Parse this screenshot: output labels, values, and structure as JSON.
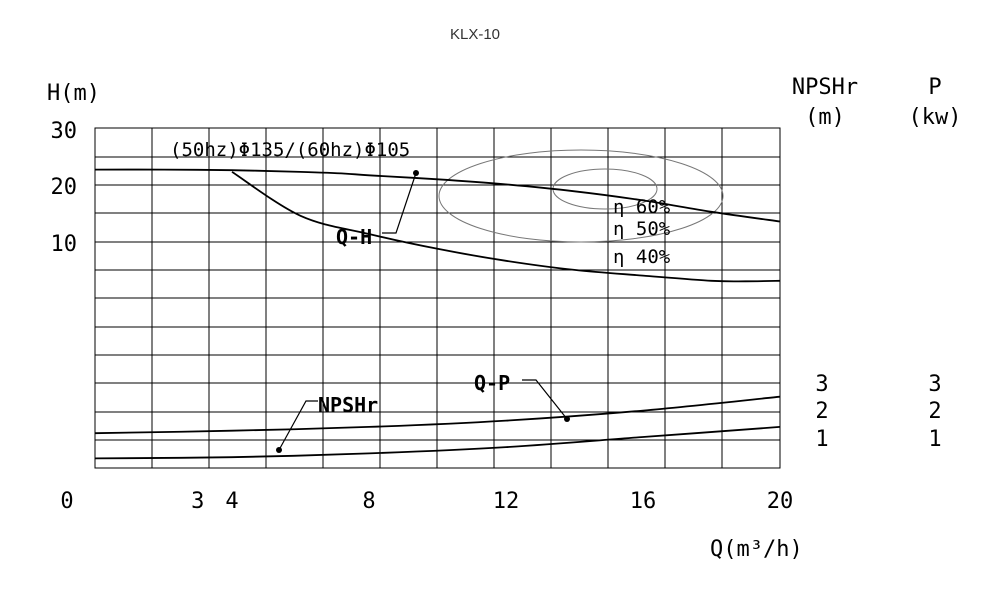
{
  "chart_data": {
    "type": "line",
    "title": "KLX-10",
    "xlabel": "Q(m³/h)",
    "ylabel_left": "H(m)",
    "ylabel_right_1": [
      "NPSHr",
      "(m)"
    ],
    "ylabel_right_2": [
      "P",
      "(kw)"
    ],
    "xlim": [
      0,
      20
    ],
    "ylim": [
      0,
      30
    ],
    "x_ticks": [
      "0",
      "3",
      "4",
      "8",
      "12",
      "16",
      "20"
    ],
    "x_tick_values": [
      0,
      3,
      4,
      8,
      12,
      16,
      20
    ],
    "y_ticks": [
      "30",
      "20",
      "10"
    ],
    "right_ticks_npshr": [
      "3",
      "2",
      "1"
    ],
    "right_ticks_p": [
      "3",
      "2",
      "1"
    ],
    "impeller_label": "(50hz)Φ135/(60hz)Φ105",
    "grid": true,
    "series": [
      {
        "name": "Q-H",
        "x": [
          0,
          2,
          4,
          6,
          7.3,
          8,
          10,
          12,
          14,
          16,
          18,
          20
        ],
        "y": [
          22.7,
          22.7,
          22.6,
          22.3,
          22.0,
          21.7,
          21.0,
          20.1,
          18.9,
          17.3,
          15.3,
          13.6
        ]
      },
      {
        "name": "Q-H (60hz)",
        "x": [
          4,
          6,
          8,
          10,
          12,
          14,
          16,
          18,
          19,
          20
        ],
        "y": [
          22.3,
          14.6,
          11.4,
          8.8,
          6.7,
          5.1,
          4.1,
          3.2,
          3.1,
          3.2
        ]
      },
      {
        "name": "NPSHr",
        "x": [
          0,
          4,
          8,
          12,
          16,
          20
        ],
        "y": [
          1.3,
          1.4,
          1.55,
          1.8,
          2.2,
          2.75
        ]
      },
      {
        "name": "Q-P",
        "x": [
          0,
          4,
          8,
          12,
          16,
          20
        ],
        "y": [
          0.3,
          0.35,
          0.5,
          0.75,
          1.15,
          1.55
        ]
      }
    ],
    "efficiency_labels": [
      "η 60%",
      "η 50%",
      "η 40%"
    ],
    "curve_labels": {
      "qh": "Q-H",
      "npshr": "NPSHr",
      "qp": "Q-P"
    }
  }
}
